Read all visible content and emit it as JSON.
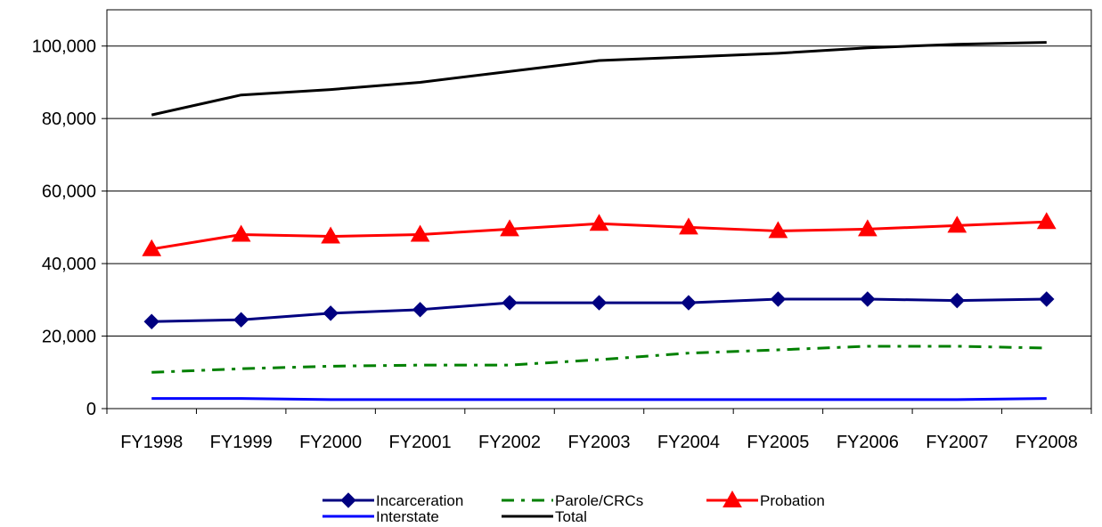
{
  "chart_data": {
    "type": "line",
    "title": "",
    "xlabel": "",
    "ylabel": "",
    "categories": [
      "FY1998",
      "FY1999",
      "FY2000",
      "FY2001",
      "FY2002",
      "FY2003",
      "FY2004",
      "FY2005",
      "FY2006",
      "FY2007",
      "FY2008"
    ],
    "ylim": [
      0,
      110000
    ],
    "yticks": [
      0,
      20000,
      40000,
      60000,
      80000,
      100000
    ],
    "ytick_labels": [
      "0",
      "20,000",
      "40,000",
      "60,000",
      "80,000",
      "100,000"
    ],
    "grid": true,
    "legend_position": "bottom",
    "series": [
      {
        "name": "Incarceration",
        "color": "#000080",
        "style": "solid",
        "marker": "diamond",
        "values": [
          24000,
          24500,
          26300,
          27300,
          29200,
          29200,
          29200,
          30200,
          30200,
          29800,
          30200
        ]
      },
      {
        "name": "Parole/CRCs",
        "color": "#008000",
        "style": "dashdot",
        "marker": "none",
        "values": [
          10000,
          11000,
          11700,
          12000,
          12000,
          13500,
          15300,
          16200,
          17200,
          17200,
          16700
        ]
      },
      {
        "name": "Probation",
        "color": "#ff0000",
        "style": "solid",
        "marker": "triangle",
        "values": [
          44000,
          48000,
          47500,
          48000,
          49500,
          51000,
          50000,
          49000,
          49500,
          50500,
          51500
        ]
      },
      {
        "name": "Interstate",
        "color": "#0000ff",
        "style": "solid",
        "marker": "none",
        "values": [
          2800,
          2800,
          2500,
          2500,
          2500,
          2500,
          2500,
          2500,
          2500,
          2500,
          2800
        ]
      },
      {
        "name": "Total",
        "color": "#000000",
        "style": "solid",
        "marker": "none",
        "values": [
          81000,
          86500,
          88000,
          90000,
          93000,
          96000,
          97000,
          98000,
          99500,
          100500,
          101000
        ]
      }
    ]
  }
}
